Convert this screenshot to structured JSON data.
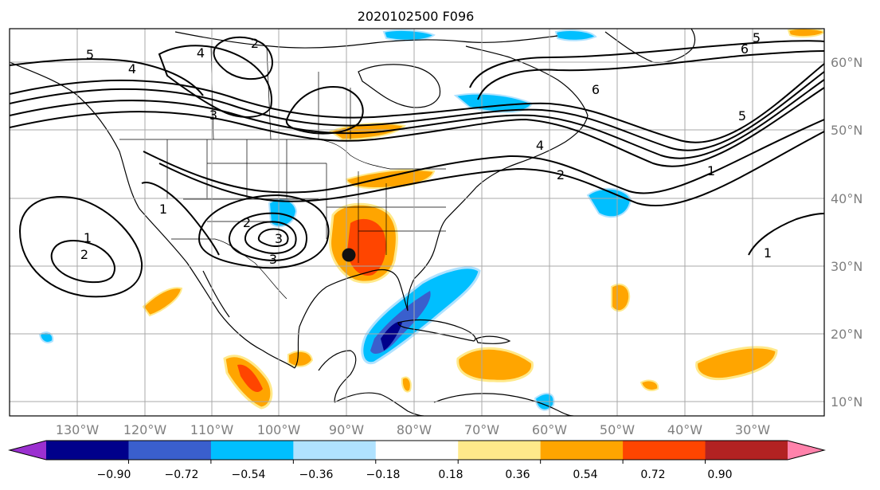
{
  "title": "2020102500 F096",
  "map": {
    "lon_labels": [
      "130°W",
      "120°W",
      "110°W",
      "100°W",
      "90°W",
      "80°W",
      "70°W",
      "60°W",
      "50°W",
      "40°W",
      "30°W"
    ],
    "lat_labels": [
      "60°N",
      "50°N",
      "40°N",
      "30°N",
      "20°N",
      "10°N"
    ],
    "contour_labels": [
      "5",
      "4",
      "3",
      "2",
      "1",
      "2",
      "3",
      "6",
      "5",
      "4",
      "2",
      "1",
      "5",
      "6",
      "1",
      "2",
      "1",
      "3",
      "4"
    ],
    "marker": "black-dot-storm-center"
  },
  "colorbar": {
    "ticks": [
      "−0.90",
      "−0.72",
      "−0.54",
      "−0.36",
      "−0.18",
      "0.18",
      "0.36",
      "0.54",
      "0.72",
      "0.90"
    ],
    "colors": [
      "#9b30d0",
      "#00008b",
      "#3a5fcd",
      "#00bfff",
      "#b0e2ff",
      "#ffffff",
      "#ffe98a",
      "#ffa500",
      "#ff4500",
      "#b22222",
      "#ff82ab"
    ],
    "extend": "both"
  }
}
